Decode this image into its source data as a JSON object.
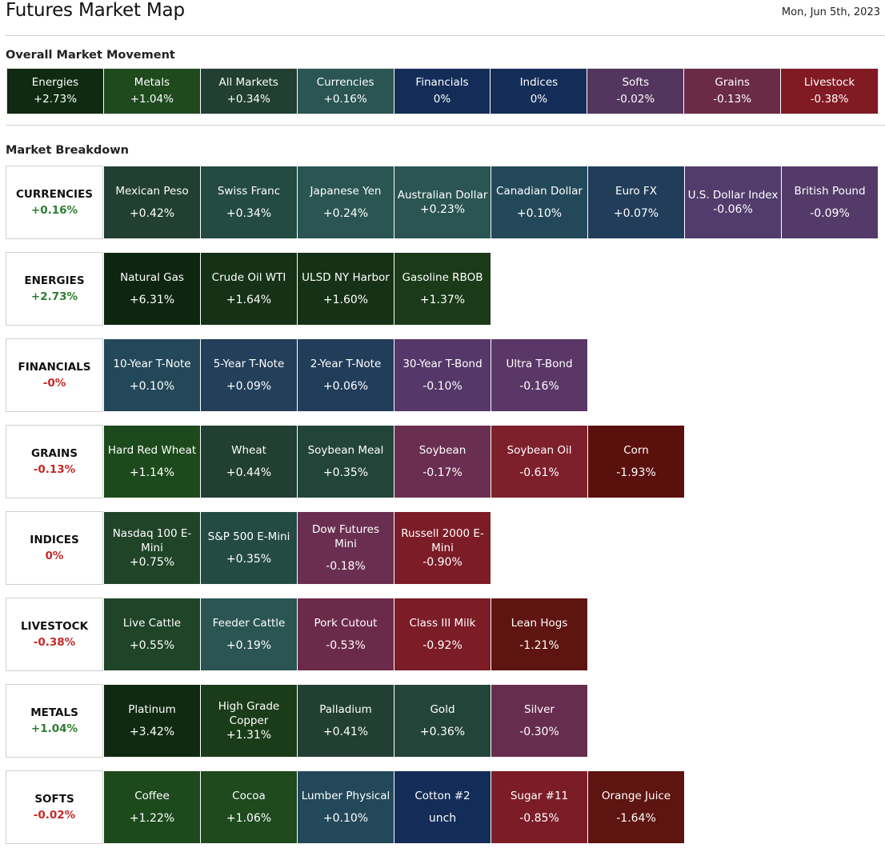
{
  "header": {
    "title": "Futures Market Map",
    "date": "Mon, Jun 5th, 2023"
  },
  "overall": {
    "heading": "Overall Market Movement",
    "tiles": [
      {
        "name": "Energies",
        "change": "+2.73%",
        "color": "#0f2a10"
      },
      {
        "name": "Metals",
        "change": "+1.04%",
        "color": "#1e4a1e"
      },
      {
        "name": "All Markets",
        "change": "+0.34%",
        "color": "#213f32"
      },
      {
        "name": "Currencies",
        "change": "+0.16%",
        "color": "#2a5552"
      },
      {
        "name": "Financials",
        "change": "0%",
        "color": "#142d58"
      },
      {
        "name": "Indices",
        "change": "0%",
        "color": "#142d58"
      },
      {
        "name": "Softs",
        "change": "-0.02%",
        "color": "#54355e"
      },
      {
        "name": "Grains",
        "change": "-0.13%",
        "color": "#6a2a48"
      },
      {
        "name": "Livestock",
        "change": "-0.38%",
        "color": "#821a24"
      }
    ]
  },
  "breakdown": {
    "heading": "Market Breakdown",
    "groups": [
      {
        "name": "CURRENCIES",
        "change": "+0.16%",
        "change_color": "#2e7d32",
        "items": [
          {
            "name": "Mexican Peso",
            "change": "+0.42%",
            "color": "#213f32"
          },
          {
            "name": "Swiss Franc",
            "change": "+0.34%",
            "color": "#244a44"
          },
          {
            "name": "Japanese Yen",
            "change": "+0.24%",
            "color": "#2a5552"
          },
          {
            "name": "Australian Dollar",
            "change": "+0.23%",
            "color": "#2a5552"
          },
          {
            "name": "Canadian Dollar",
            "change": "+0.10%",
            "color": "#234859"
          },
          {
            "name": "Euro FX",
            "change": "+0.07%",
            "color": "#213d5a"
          },
          {
            "name": "U.S. Dollar Index",
            "change": "-0.06%",
            "color": "#513c6c"
          },
          {
            "name": "British Pound",
            "change": "-0.09%",
            "color": "#533a69"
          }
        ]
      },
      {
        "name": "ENERGIES",
        "change": "+2.73%",
        "change_color": "#2e7d32",
        "items": [
          {
            "name": "Natural Gas",
            "change": "+6.31%",
            "color": "#0e2610"
          },
          {
            "name": "Crude Oil WTI",
            "change": "+1.64%",
            "color": "#163216"
          },
          {
            "name": "ULSD NY Harbor",
            "change": "+1.60%",
            "color": "#163216"
          },
          {
            "name": "Gasoline RBOB",
            "change": "+1.37%",
            "color": "#1a3a18"
          }
        ]
      },
      {
        "name": "FINANCIALS",
        "change": "-0%",
        "change_color": "#c62828",
        "items": [
          {
            "name": "10-Year T-Note",
            "change": "+0.10%",
            "color": "#234859"
          },
          {
            "name": "5-Year T-Note",
            "change": "+0.09%",
            "color": "#233f5a"
          },
          {
            "name": "2-Year T-Note",
            "change": "+0.06%",
            "color": "#213d5a"
          },
          {
            "name": "30-Year T-Bond",
            "change": "-0.10%",
            "color": "#553769"
          },
          {
            "name": "Ultra T-Bond",
            "change": "-0.16%",
            "color": "#5a3766"
          }
        ]
      },
      {
        "name": "GRAINS",
        "change": "-0.13%",
        "change_color": "#c62828",
        "items": [
          {
            "name": "Hard Red Wheat",
            "change": "+1.14%",
            "color": "#1d4a1d"
          },
          {
            "name": "Wheat",
            "change": "+0.44%",
            "color": "#213f32"
          },
          {
            "name": "Soybean Meal",
            "change": "+0.35%",
            "color": "#234539"
          },
          {
            "name": "Soybean",
            "change": "-0.17%",
            "color": "#6a2f50"
          },
          {
            "name": "Soybean Oil",
            "change": "-0.61%",
            "color": "#7e1f2c"
          },
          {
            "name": "Corn",
            "change": "-1.93%",
            "color": "#5a100c"
          }
        ]
      },
      {
        "name": "INDICES",
        "change": "0%",
        "change_color": "#c62828",
        "items": [
          {
            "name": "Nasdaq 100 E-Mini",
            "change": "+0.75%",
            "color": "#1f4428"
          },
          {
            "name": "S&P 500 E-Mini",
            "change": "+0.35%",
            "color": "#244a44"
          },
          {
            "name": "Dow Futures Mini",
            "change": "-0.18%",
            "color": "#6a2f50"
          },
          {
            "name": "Russell 2000 E-Mini",
            "change": "-0.90%",
            "color": "#7c1c27"
          }
        ]
      },
      {
        "name": "LIVESTOCK",
        "change": "-0.38%",
        "change_color": "#c62828",
        "items": [
          {
            "name": "Live Cattle",
            "change": "+0.55%",
            "color": "#1f4428"
          },
          {
            "name": "Feeder Cattle",
            "change": "+0.19%",
            "color": "#2a5552"
          },
          {
            "name": "Pork Cutout",
            "change": "-0.53%",
            "color": "#6c2a4a"
          },
          {
            "name": "Class III Milk",
            "change": "-0.92%",
            "color": "#7c1c27"
          },
          {
            "name": "Lean Hogs",
            "change": "-1.21%",
            "color": "#5e1410"
          }
        ]
      },
      {
        "name": "METALS",
        "change": "+1.04%",
        "change_color": "#2e7d32",
        "items": [
          {
            "name": "Platinum",
            "change": "+3.42%",
            "color": "#0f2a10"
          },
          {
            "name": "High Grade Copper",
            "change": "+1.31%",
            "color": "#1b3c18"
          },
          {
            "name": "Palladium",
            "change": "+0.41%",
            "color": "#213f32"
          },
          {
            "name": "Gold",
            "change": "+0.36%",
            "color": "#234539"
          },
          {
            "name": "Silver",
            "change": "-0.30%",
            "color": "#672d4e"
          }
        ]
      },
      {
        "name": "SOFTS",
        "change": "-0.02%",
        "change_color": "#c62828",
        "items": [
          {
            "name": "Coffee",
            "change": "+1.22%",
            "color": "#1d4a1d"
          },
          {
            "name": "Cocoa",
            "change": "+1.06%",
            "color": "#1e4a1e"
          },
          {
            "name": "Lumber Physical",
            "change": "+0.10%",
            "color": "#234859"
          },
          {
            "name": "Cotton #2",
            "change": "unch",
            "color": "#142d58"
          },
          {
            "name": "Sugar #11",
            "change": "-0.85%",
            "color": "#7c1c27"
          },
          {
            "name": "Orange Juice",
            "change": "-1.64%",
            "color": "#5e1410"
          }
        ]
      }
    ]
  }
}
